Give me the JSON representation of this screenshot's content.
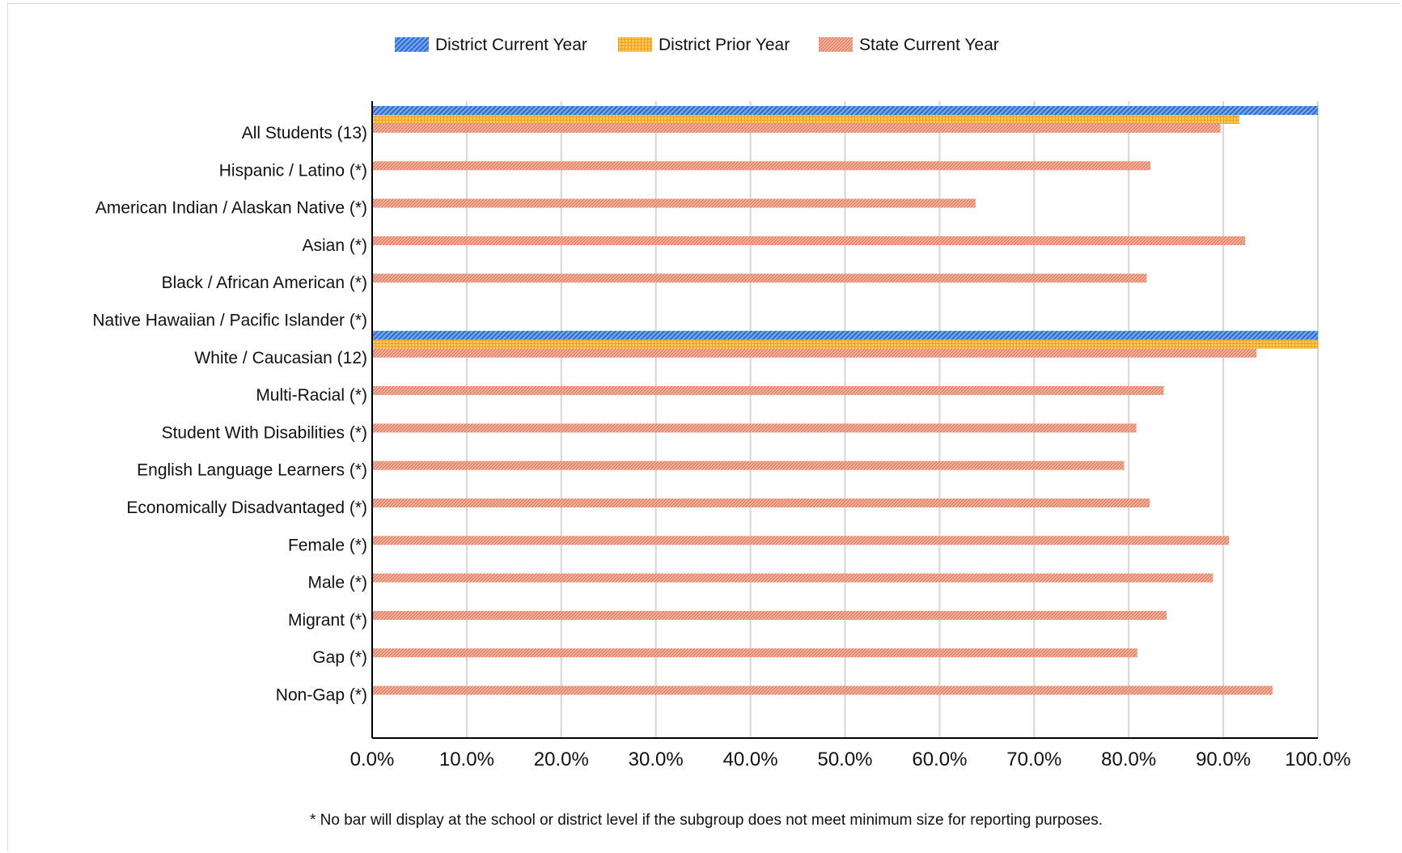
{
  "chart_data": {
    "type": "bar",
    "orientation": "horizontal",
    "categories": [
      "All Students (13)",
      "Hispanic / Latino (*)",
      "American Indian / Alaskan Native (*)",
      "Asian (*)",
      "Black / African American (*)",
      "Native Hawaiian / Pacific Islander (*)",
      "White / Caucasian (12)",
      "Multi-Racial (*)",
      "Student With Disabilities (*)",
      "English Language Learners (*)",
      "Economically Disadvantaged (*)",
      "Female (*)",
      "Male (*)",
      "Migrant (*)",
      "Gap (*)",
      "Non-Gap (*)"
    ],
    "series": [
      {
        "name": "District Current Year",
        "color": "#3d7fdc",
        "pattern": "diagonal-hatch",
        "values": [
          100.0,
          null,
          null,
          null,
          null,
          null,
          100.0,
          null,
          null,
          null,
          null,
          null,
          null,
          null,
          null,
          null
        ]
      },
      {
        "name": "District Prior Year",
        "color": "#f5a623",
        "pattern": "grid",
        "values": [
          91.7,
          null,
          null,
          null,
          null,
          null,
          100.0,
          null,
          null,
          null,
          null,
          null,
          null,
          null,
          null,
          null
        ]
      },
      {
        "name": "State Current Year",
        "color": "#ea8a6e",
        "pattern": "fine-hatch",
        "values": [
          89.7,
          82.3,
          63.8,
          92.3,
          81.9,
          null,
          93.5,
          83.7,
          80.8,
          79.5,
          82.2,
          90.6,
          88.9,
          84.0,
          80.9,
          95.2
        ]
      }
    ],
    "xticks": [
      "0.0%",
      "10.0%",
      "20.0%",
      "30.0%",
      "40.0%",
      "50.0%",
      "60.0%",
      "70.0%",
      "80.0%",
      "90.0%",
      "100.0%"
    ],
    "xlim": [
      0,
      100
    ],
    "grid": true,
    "legend": "top-center",
    "footnote": "* No bar will display at the school or district level if the subgroup does not meet minimum size for reporting purposes."
  }
}
